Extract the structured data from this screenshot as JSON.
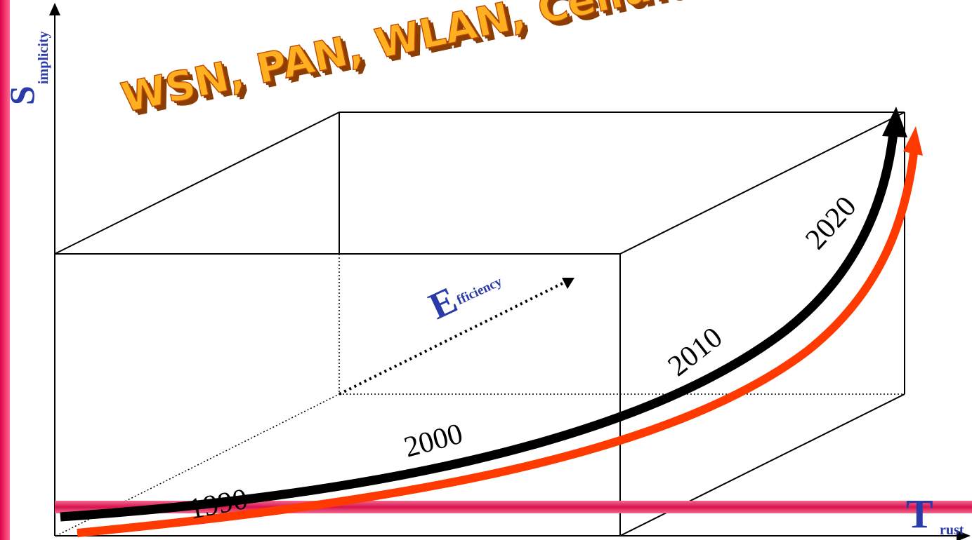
{
  "banner": {
    "text": "WSN, PAN, WLAN, Cellular, Broadcast, Moving Network"
  },
  "axes": {
    "vertical": {
      "initial": "S",
      "rest": "implicity"
    },
    "depth": {
      "initial": "E",
      "rest": "fficiency"
    },
    "horizontal": {
      "initial": "T",
      "rest": "rust"
    }
  },
  "timeline": {
    "years": [
      "1990",
      "2000",
      "2010",
      "2020"
    ]
  },
  "colors": {
    "left_stripe": "#e0004a",
    "trust_band": "#d8134f",
    "curve_black": "#000000",
    "curve_orange": "#ff3a00",
    "axis_text": "#2a3aa8",
    "banner_fill": "#ffb020",
    "banner_edge": "#c04a00"
  }
}
